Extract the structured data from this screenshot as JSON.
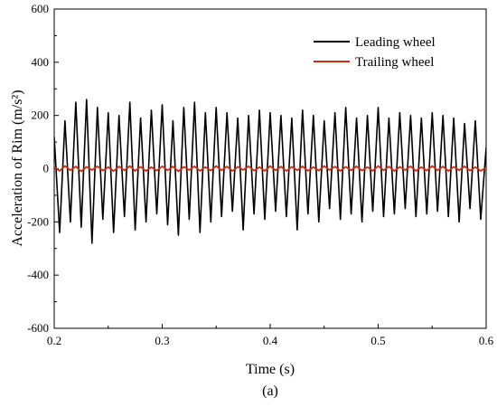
{
  "chart_data": {
    "type": "line",
    "xlabel": "Time (s)",
    "ylabel": "Acceleration of Rim (m/s²)",
    "panel_label": "(a)",
    "xlim": [
      0.2,
      0.6
    ],
    "ylim": [
      -600,
      600
    ],
    "xticks": [
      0.2,
      0.3,
      0.4,
      0.5,
      0.6
    ],
    "xtick_labels": [
      "0.2",
      "0.3",
      "0.4",
      "0.5",
      "0.6"
    ],
    "yticks": [
      -600,
      -400,
      -200,
      0,
      200,
      400,
      600
    ],
    "ytick_labels": [
      "-600",
      "-400",
      "-200",
      "0",
      "200",
      "400",
      "600"
    ],
    "grid": false,
    "legend_position": "top-right",
    "series": [
      {
        "name": "Leading wheel",
        "color": "#000000",
        "x": [
          0.2,
          0.205,
          0.21,
          0.215,
          0.22,
          0.225,
          0.23,
          0.235,
          0.24,
          0.245,
          0.25,
          0.255,
          0.26,
          0.265,
          0.27,
          0.275,
          0.28,
          0.285,
          0.29,
          0.295,
          0.3,
          0.305,
          0.31,
          0.315,
          0.32,
          0.325,
          0.33,
          0.335,
          0.34,
          0.345,
          0.35,
          0.355,
          0.36,
          0.365,
          0.37,
          0.375,
          0.38,
          0.385,
          0.39,
          0.395,
          0.4,
          0.405,
          0.41,
          0.415,
          0.42,
          0.425,
          0.43,
          0.435,
          0.44,
          0.445,
          0.45,
          0.455,
          0.46,
          0.465,
          0.47,
          0.475,
          0.48,
          0.485,
          0.49,
          0.495,
          0.5,
          0.505,
          0.51,
          0.515,
          0.52,
          0.525,
          0.53,
          0.535,
          0.54,
          0.545,
          0.55,
          0.555,
          0.56,
          0.565,
          0.57,
          0.575,
          0.58,
          0.585,
          0.59,
          0.595,
          0.6
        ],
        "values": [
          120,
          -240,
          180,
          -200,
          250,
          -220,
          260,
          -280,
          230,
          -190,
          210,
          -240,
          200,
          -180,
          250,
          -230,
          190,
          -200,
          220,
          -170,
          240,
          -210,
          180,
          -250,
          230,
          -190,
          250,
          -240,
          210,
          -200,
          230,
          -180,
          210,
          -160,
          190,
          -230,
          200,
          -170,
          220,
          -190,
          210,
          -160,
          200,
          -180,
          190,
          -230,
          220,
          -170,
          200,
          -200,
          180,
          -150,
          210,
          -190,
          230,
          -170,
          190,
          -200,
          200,
          -160,
          230,
          -180,
          190,
          -170,
          210,
          -150,
          200,
          -180,
          190,
          -170,
          210,
          -160,
          200,
          -180,
          190,
          -200,
          170,
          -150,
          180,
          -190,
          80
        ]
      },
      {
        "name": "Trailing wheel",
        "color": "#d42a0c",
        "x": [
          0.2,
          0.205,
          0.21,
          0.215,
          0.22,
          0.225,
          0.23,
          0.235,
          0.24,
          0.245,
          0.25,
          0.255,
          0.26,
          0.265,
          0.27,
          0.275,
          0.28,
          0.285,
          0.29,
          0.295,
          0.3,
          0.305,
          0.31,
          0.315,
          0.32,
          0.325,
          0.33,
          0.335,
          0.34,
          0.345,
          0.35,
          0.355,
          0.36,
          0.365,
          0.37,
          0.375,
          0.38,
          0.385,
          0.39,
          0.395,
          0.4,
          0.405,
          0.41,
          0.415,
          0.42,
          0.425,
          0.43,
          0.435,
          0.44,
          0.445,
          0.45,
          0.455,
          0.46,
          0.465,
          0.47,
          0.475,
          0.48,
          0.485,
          0.49,
          0.495,
          0.5,
          0.505,
          0.51,
          0.515,
          0.52,
          0.525,
          0.53,
          0.535,
          0.54,
          0.545,
          0.55,
          0.555,
          0.56,
          0.565,
          0.57,
          0.575,
          0.58,
          0.585,
          0.59,
          0.595,
          0.6
        ],
        "values": [
          5,
          -8,
          10,
          -6,
          8,
          -10,
          7,
          -5,
          9,
          -7,
          6,
          -9,
          8,
          -6,
          10,
          -8,
          7,
          -9,
          6,
          -7,
          9,
          -6,
          8,
          -10,
          7,
          -5,
          9,
          -8,
          6,
          -7,
          10,
          -6,
          8,
          -9,
          7,
          -5,
          9,
          -7,
          6,
          -8,
          10,
          -6,
          8,
          -9,
          7,
          -6,
          9,
          -8,
          6,
          -7,
          10,
          -5,
          8,
          -9,
          7,
          -6,
          9,
          -7,
          6,
          -8,
          10,
          -6,
          8,
          -9,
          7,
          -5,
          9,
          -8,
          6,
          -7,
          10,
          -6,
          8,
          -9,
          7,
          -6,
          9,
          -7,
          6,
          -8,
          4
        ]
      }
    ]
  }
}
